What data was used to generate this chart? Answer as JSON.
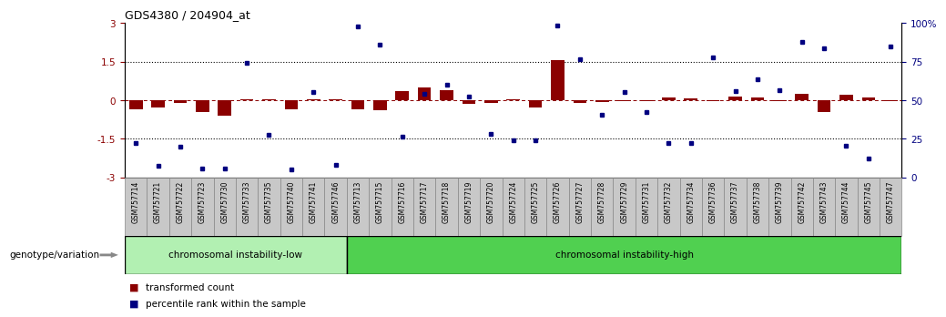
{
  "title": "GDS4380 / 204904_at",
  "samples": [
    "GSM757714",
    "GSM757721",
    "GSM757722",
    "GSM757723",
    "GSM757730",
    "GSM757733",
    "GSM757735",
    "GSM757740",
    "GSM757741",
    "GSM757746",
    "GSM757713",
    "GSM757715",
    "GSM757716",
    "GSM757717",
    "GSM757718",
    "GSM757719",
    "GSM757720",
    "GSM757724",
    "GSM757725",
    "GSM757726",
    "GSM757727",
    "GSM757728",
    "GSM757729",
    "GSM757731",
    "GSM757732",
    "GSM757734",
    "GSM757736",
    "GSM757737",
    "GSM757738",
    "GSM757739",
    "GSM757742",
    "GSM757743",
    "GSM757744",
    "GSM757745",
    "GSM757747"
  ],
  "red_bars": [
    -0.35,
    -0.28,
    -0.1,
    -0.45,
    -0.6,
    0.05,
    0.02,
    -0.35,
    0.05,
    0.02,
    -0.35,
    -0.4,
    0.35,
    0.5,
    0.4,
    -0.15,
    -0.1,
    0.02,
    -0.3,
    1.55,
    -0.1,
    -0.08,
    -0.05,
    -0.05,
    0.1,
    0.08,
    -0.05,
    0.15,
    0.1,
    -0.02,
    0.25,
    -0.45,
    0.2,
    0.12,
    -0.05
  ],
  "blue_dots": [
    -1.65,
    -2.55,
    -1.8,
    -2.65,
    -2.65,
    1.45,
    -1.35,
    -2.7,
    0.3,
    -2.5,
    2.85,
    2.15,
    -1.4,
    0.25,
    0.6,
    0.15,
    -1.3,
    -1.55,
    -1.55,
    2.9,
    1.6,
    -0.55,
    0.3,
    -0.45,
    -1.65,
    -1.65,
    1.65,
    0.35,
    0.8,
    0.4,
    2.25,
    2.0,
    -1.75,
    -2.25,
    2.1
  ],
  "group_low_count": 10,
  "group1_label": "chromosomal instability-low",
  "group2_label": "chromosomal instability-high",
  "group1_color": "#b2f0b2",
  "group2_color": "#50d050",
  "ylim": [
    -3,
    3
  ],
  "y2lim": [
    0,
    100
  ],
  "yticks_left": [
    -3,
    -1.5,
    0,
    1.5,
    3
  ],
  "ytick_labels_left": [
    "-3",
    "-1.5",
    "0",
    "1.5",
    "3"
  ],
  "y2ticks": [
    0,
    25,
    50,
    75,
    100
  ],
  "y2tick_labels": [
    "0",
    "25",
    "50",
    "75",
    "100%"
  ],
  "hline_dotted": [
    -1.5,
    1.5
  ],
  "bar_color": "#8B0000",
  "dot_color": "#000080",
  "legend_bar_label": "transformed count",
  "legend_dot_label": "percentile rank within the sample",
  "genotype_label": "genotype/variation",
  "background_color": "#ffffff",
  "tick_bg_color": "#c8c8c8",
  "tick_border_color": "#888888"
}
